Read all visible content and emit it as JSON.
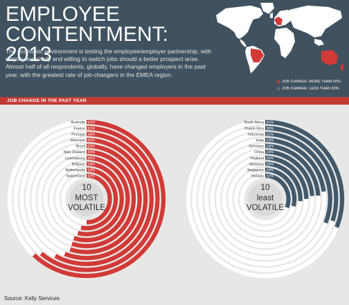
{
  "header": {
    "title_line1": "EMPLOYEE",
    "title_line2": "CONTENTMENT: 2013",
    "description": "The economic environment is testing the employee/employer partnership, with employees ready and willing to switch jobs should a better prospect arise. Almost half of all respondents, globally, have changed employers in the past year, with the greatest rate of job-changers in the EMEA region."
  },
  "legend": {
    "items": [
      {
        "label": "JOB CHANGE: MORE THAN 50%",
        "color": "#c33b35"
      },
      {
        "label": "JOB CHANGE: LESS THAN 50%",
        "color": "#3f5866"
      }
    ]
  },
  "section": {
    "label": "JOB CHANGE IN THE PAST YEAR"
  },
  "source": "Source: Kelly Services",
  "chart_data": [
    {
      "type": "bar",
      "title": "10 MOST VOLATILE",
      "title_lines": [
        "10",
        "MOST",
        "VOLATILE"
      ],
      "color": "#d13a36",
      "track_color": "#ffffff",
      "ylim": [
        0,
        100
      ],
      "categories": [
        "Australia",
        "France",
        "Portugal",
        "Denmark",
        "Brazil",
        "New Zealand",
        "Luxembourg",
        "Belgium",
        "Netherlands",
        "Switzerland"
      ],
      "values": [
        62,
        61,
        58,
        56,
        55,
        55,
        55,
        54,
        53,
        50
      ],
      "labels": [
        "62%",
        "61%",
        "58%",
        "56%",
        "55%",
        "55%",
        "55%",
        "54%",
        "53%",
        "50%"
      ]
    },
    {
      "type": "bar",
      "title": "10 LEAST VOLATILE",
      "title_lines": [
        "10",
        "least",
        "VOLATILE"
      ],
      "color": "#42596a",
      "track_color": "#ffffff",
      "ylim": [
        0,
        100
      ],
      "categories": [
        "South Africa",
        "Puerto Rico",
        "Indonesia",
        "India",
        "Germany",
        "China",
        "Thailand",
        "Malaysia",
        "Singapore",
        "Norway"
      ],
      "values": [
        31,
        30,
        31,
        23,
        24,
        24,
        25,
        26,
        29,
        31
      ],
      "labels": [
        "31%",
        "30%",
        "31%",
        "23%",
        "24%",
        "24%",
        "25%",
        "26%",
        "29%",
        "31%"
      ]
    }
  ]
}
